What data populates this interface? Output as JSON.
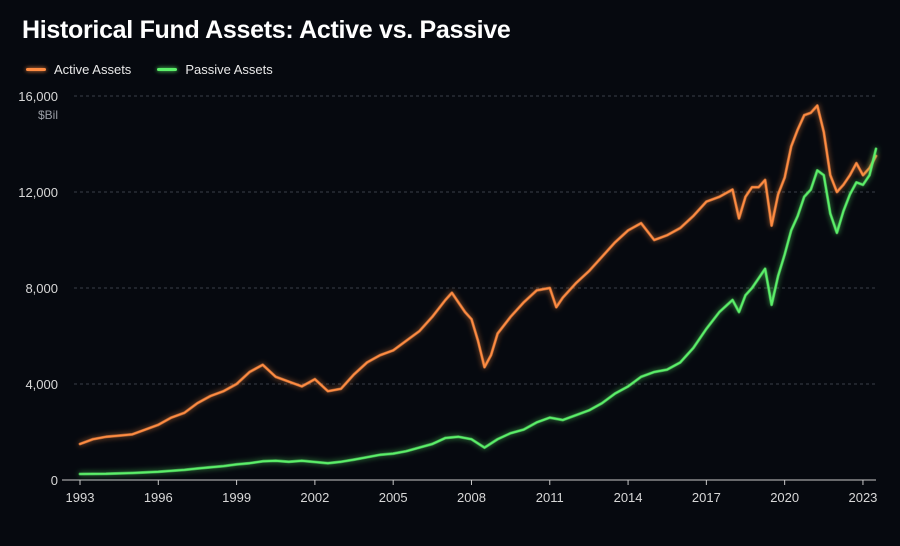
{
  "chart_data": {
    "type": "line",
    "title": "Historical Fund Assets: Active vs. Passive",
    "ylabel": "$Bil",
    "xlabel": "",
    "xlim": [
      1993,
      2023.5
    ],
    "ylim": [
      0,
      16000
    ],
    "yticks": [
      0,
      4000,
      8000,
      12000,
      16000
    ],
    "ytick_labels": [
      "0",
      "4,000",
      "8,000",
      "12,000",
      "16,000"
    ],
    "xticks": [
      1993,
      1996,
      1999,
      2002,
      2005,
      2008,
      2011,
      2014,
      2017,
      2020,
      2023
    ],
    "xtick_labels": [
      "1993",
      "1996",
      "1999",
      "2002",
      "2005",
      "2008",
      "2011",
      "2014",
      "2017",
      "2020",
      "2023"
    ],
    "grid": "horizontal dashed",
    "legend_position": "top-left",
    "series": [
      {
        "name": "Active Assets",
        "color": "#ff8c42",
        "x": [
          1993.0,
          1993.5,
          1994.0,
          1994.5,
          1995.0,
          1995.5,
          1996.0,
          1996.5,
          1997.0,
          1997.5,
          1998.0,
          1998.5,
          1999.0,
          1999.5,
          2000.0,
          2000.5,
          2001.0,
          2001.5,
          2002.0,
          2002.5,
          2003.0,
          2003.5,
          2004.0,
          2004.5,
          2005.0,
          2005.5,
          2006.0,
          2006.5,
          2007.0,
          2007.25,
          2007.5,
          2007.75,
          2008.0,
          2008.25,
          2008.5,
          2008.75,
          2009.0,
          2009.5,
          2010.0,
          2010.5,
          2011.0,
          2011.25,
          2011.5,
          2012.0,
          2012.5,
          2013.0,
          2013.5,
          2014.0,
          2014.5,
          2015.0,
          2015.25,
          2015.5,
          2016.0,
          2016.5,
          2017.0,
          2017.5,
          2018.0,
          2018.25,
          2018.5,
          2018.75,
          2019.0,
          2019.25,
          2019.5,
          2019.75,
          2020.0,
          2020.25,
          2020.5,
          2020.75,
          2021.0,
          2021.25,
          2021.5,
          2021.75,
          2022.0,
          2022.25,
          2022.5,
          2022.75,
          2023.0,
          2023.25,
          2023.5
        ],
        "values": [
          1500,
          1700,
          1800,
          1850,
          1900,
          2100,
          2300,
          2600,
          2800,
          3200,
          3500,
          3700,
          4000,
          4500,
          4800,
          4300,
          4100,
          3900,
          4200,
          3700,
          3800,
          4400,
          4900,
          5200,
          5400,
          5800,
          6200,
          6800,
          7500,
          7800,
          7400,
          7000,
          6700,
          5800,
          4700,
          5200,
          6100,
          6800,
          7400,
          7900,
          8000,
          7200,
          7600,
          8200,
          8700,
          9300,
          9900,
          10400,
          10700,
          10000,
          10100,
          10200,
          10500,
          11000,
          11600,
          11800,
          12100,
          10900,
          11800,
          12200,
          12200,
          12500,
          10600,
          11900,
          12600,
          13900,
          14600,
          15200,
          15300,
          15600,
          14500,
          12700,
          12000,
          12300,
          12700,
          13200,
          12700,
          13000,
          13500
        ]
      },
      {
        "name": "Passive Assets",
        "color": "#5cf06a",
        "x": [
          1993.0,
          1994.0,
          1995.0,
          1996.0,
          1997.0,
          1997.5,
          1998.0,
          1998.5,
          1999.0,
          1999.5,
          2000.0,
          2000.5,
          2001.0,
          2001.5,
          2002.0,
          2002.5,
          2003.0,
          2003.5,
          2004.0,
          2004.5,
          2005.0,
          2005.5,
          2006.0,
          2006.5,
          2007.0,
          2007.5,
          2008.0,
          2008.5,
          2009.0,
          2009.5,
          2010.0,
          2010.5,
          2011.0,
          2011.5,
          2012.0,
          2012.5,
          2013.0,
          2013.5,
          2014.0,
          2014.5,
          2015.0,
          2015.5,
          2016.0,
          2016.5,
          2017.0,
          2017.5,
          2018.0,
          2018.25,
          2018.5,
          2018.75,
          2019.0,
          2019.25,
          2019.5,
          2019.75,
          2020.0,
          2020.25,
          2020.5,
          2020.75,
          2021.0,
          2021.25,
          2021.5,
          2021.75,
          2022.0,
          2022.25,
          2022.5,
          2022.75,
          2023.0,
          2023.25,
          2023.5
        ],
        "values": [
          250,
          260,
          290,
          340,
          420,
          480,
          530,
          580,
          650,
          700,
          780,
          800,
          760,
          800,
          750,
          700,
          760,
          850,
          950,
          1050,
          1100,
          1200,
          1350,
          1500,
          1750,
          1800,
          1700,
          1350,
          1700,
          1950,
          2100,
          2400,
          2600,
          2500,
          2700,
          2900,
          3200,
          3600,
          3900,
          4300,
          4500,
          4600,
          4900,
          5500,
          6300,
          7000,
          7500,
          7000,
          7700,
          8000,
          8400,
          8800,
          7300,
          8500,
          9400,
          10400,
          11000,
          11800,
          12100,
          12900,
          12700,
          11100,
          10300,
          11200,
          11900,
          12400,
          12300,
          12700,
          13800
        ]
      }
    ]
  }
}
